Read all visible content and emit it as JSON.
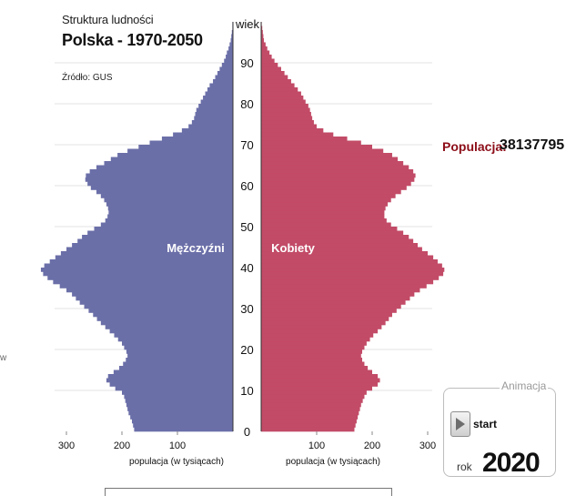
{
  "header": {
    "subtitle": "Struktura ludności",
    "title": "Polska - 1970-2050",
    "source": "Źródło: GUS"
  },
  "population": {
    "label": "Populacja:",
    "value": "38137795"
  },
  "animation": {
    "title": "Animacja",
    "start_label": "start",
    "year_label": "rok",
    "year": "2020"
  },
  "left_edge_text": "w",
  "chart_data": {
    "type": "bar",
    "orientation": "horizontal-pyramid",
    "title": "Polska - 1970-2050",
    "subtitle": "Struktura ludności",
    "age_axis_label": "wiek",
    "age_ticks": [
      0,
      10,
      20,
      30,
      40,
      50,
      60,
      70,
      80,
      90
    ],
    "x_ticks_left": [
      "300",
      "200",
      "100"
    ],
    "x_ticks_right": [
      "100",
      "200",
      "300"
    ],
    "xlabel": "populacja (w tysiącach)",
    "xlim": [
      0,
      300
    ],
    "ylim": [
      0,
      100
    ],
    "grid": true,
    "ages": [
      0,
      1,
      2,
      3,
      4,
      5,
      6,
      7,
      8,
      9,
      10,
      11,
      12,
      13,
      14,
      15,
      16,
      17,
      18,
      19,
      20,
      21,
      22,
      23,
      24,
      25,
      26,
      27,
      28,
      29,
      30,
      31,
      32,
      33,
      34,
      35,
      36,
      37,
      38,
      39,
      40,
      41,
      42,
      43,
      44,
      45,
      46,
      47,
      48,
      49,
      50,
      51,
      52,
      53,
      54,
      55,
      56,
      57,
      58,
      59,
      60,
      61,
      62,
      63,
      64,
      65,
      66,
      67,
      68,
      69,
      70,
      71,
      72,
      73,
      74,
      75,
      76,
      77,
      78,
      79,
      80,
      81,
      82,
      83,
      84,
      85,
      86,
      87,
      88,
      89,
      90,
      91,
      92,
      93,
      94,
      95,
      96,
      97,
      98,
      99,
      100
    ],
    "series": [
      {
        "name": "Mężczyźni",
        "color": "#6b6fa8",
        "values": [
          178,
          180,
          182,
          185,
          188,
          190,
          192,
          194,
          196,
          200,
          212,
          222,
          228,
          225,
          215,
          205,
          198,
          193,
          190,
          192,
          196,
          200,
          207,
          214,
          222,
          230,
          238,
          245,
          252,
          260,
          268,
          276,
          283,
          290,
          300,
          312,
          324,
          334,
          342,
          346,
          340,
          330,
          320,
          310,
          300,
          290,
          280,
          272,
          262,
          250,
          238,
          230,
          226,
          224,
          225,
          228,
          232,
          238,
          246,
          256,
          262,
          266,
          265,
          258,
          246,
          232,
          220,
          208,
          190,
          170,
          150,
          128,
          108,
          92,
          80,
          74,
          70,
          68,
          66,
          62,
          58,
          54,
          50,
          46,
          42,
          36,
          32,
          28,
          24,
          20,
          16,
          13,
          11,
          8,
          6,
          4,
          3,
          2,
          1,
          1,
          0
        ]
      },
      {
        "name": "Kobiety",
        "color": "#c24b67",
        "values": [
          168,
          170,
          172,
          174,
          176,
          178,
          180,
          183,
          186,
          190,
          200,
          210,
          214,
          210,
          200,
          192,
          186,
          182,
          180,
          182,
          186,
          190,
          196,
          202,
          210,
          217,
          224,
          230,
          236,
          244,
          252,
          260,
          268,
          276,
          286,
          298,
          310,
          320,
          328,
          330,
          326,
          318,
          310,
          300,
          290,
          282,
          274,
          266,
          256,
          245,
          234,
          226,
          222,
          222,
          224,
          228,
          234,
          242,
          252,
          262,
          270,
          276,
          278,
          274,
          266,
          256,
          246,
          236,
          220,
          200,
          180,
          155,
          130,
          112,
          100,
          95,
          92,
          90,
          88,
          85,
          80,
          76,
          72,
          66,
          60,
          54,
          48,
          42,
          36,
          30,
          24,
          19,
          15,
          11,
          8,
          5,
          4,
          3,
          2,
          1,
          0
        ]
      }
    ],
    "annotations": [
      "Mężczyźni",
      "Kobiety"
    ]
  }
}
